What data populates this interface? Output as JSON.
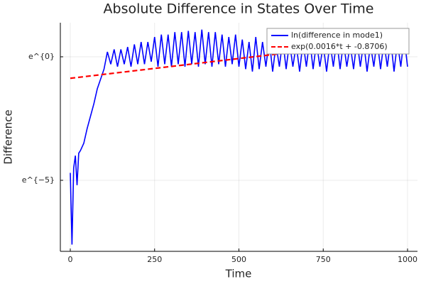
{
  "chart_data": {
    "type": "line",
    "title": "Absolute Difference in States Over Time",
    "xlabel": "Time",
    "ylabel": "Difference",
    "xlim": [
      -29.5,
      1029.5
    ],
    "xticks": [
      0,
      250,
      500,
      750,
      1000
    ],
    "ylim": [
      0.00038,
      3.97
    ],
    "ylog": true,
    "yticks": [
      {
        "value": 1,
        "label": "e^{0}"
      },
      {
        "value": 0.006738,
        "label": "e^{−5}"
      }
    ],
    "grid": true,
    "legend": "top-right",
    "series": [
      {
        "name": "ln(difference in mode1)",
        "color": "#0000ff",
        "linestyle": "solid",
        "x": [
          0,
          5,
          10,
          15,
          20,
          25,
          30,
          40,
          50,
          60,
          70,
          80,
          90,
          100,
          110,
          120,
          130,
          140,
          150,
          160,
          170,
          180,
          190,
          200,
          210,
          220,
          230,
          240,
          250,
          260,
          270,
          280,
          290,
          300,
          310,
          320,
          330,
          340,
          350,
          360,
          370,
          380,
          390,
          400,
          410,
          420,
          430,
          440,
          450,
          460,
          470,
          480,
          490,
          500,
          510,
          520,
          530,
          540,
          550,
          560,
          570,
          580,
          590,
          600,
          610,
          620,
          630,
          640,
          650,
          660,
          670,
          680,
          690,
          700,
          710,
          720,
          730,
          740,
          750,
          760,
          770,
          780,
          790,
          800,
          810,
          820,
          830,
          840,
          850,
          860,
          870,
          880,
          890,
          900,
          910,
          920,
          930,
          940,
          950,
          960,
          970,
          980,
          990,
          1000
        ],
        "values": [
          0.0091,
          0.0005,
          0.0111,
          0.0183,
          0.00552,
          0.0202,
          0.0224,
          0.0302,
          0.055,
          0.0907,
          0.15,
          0.273,
          0.407,
          0.607,
          1.22,
          0.741,
          1.35,
          0.67,
          1.35,
          0.741,
          1.49,
          0.67,
          1.65,
          0.741,
          1.82,
          0.741,
          1.82,
          0.819,
          2.23,
          0.67,
          2.46,
          0.741,
          2.46,
          0.67,
          2.72,
          0.741,
          2.72,
          0.67,
          2.86,
          0.741,
          2.72,
          0.67,
          3.0,
          0.741,
          2.72,
          0.67,
          2.72,
          0.741,
          2.46,
          0.67,
          2.23,
          0.741,
          2.46,
          0.67,
          2.01,
          0.607,
          1.82,
          0.549,
          2.23,
          0.607,
          1.82,
          0.67,
          2.01,
          0.549,
          1.65,
          0.67,
          2.01,
          0.607,
          1.82,
          0.67,
          1.65,
          0.549,
          1.82,
          0.67,
          2.01,
          0.607,
          1.82,
          0.67,
          1.65,
          0.549,
          1.82,
          0.67,
          2.01,
          0.607,
          1.82,
          0.67,
          1.65,
          0.607,
          2.01,
          0.67,
          1.82,
          0.549,
          1.65,
          0.67,
          2.01,
          0.607,
          1.82,
          0.67,
          2.01,
          0.549,
          1.82,
          0.67,
          2.23,
          0.67
        ]
      },
      {
        "name": "exp(0.0016*t + -0.8706)",
        "color": "#ff0000",
        "linestyle": "dashed",
        "x": [
          0,
          1000
        ],
        "values": [
          0.4187,
          2.074
        ]
      }
    ]
  }
}
